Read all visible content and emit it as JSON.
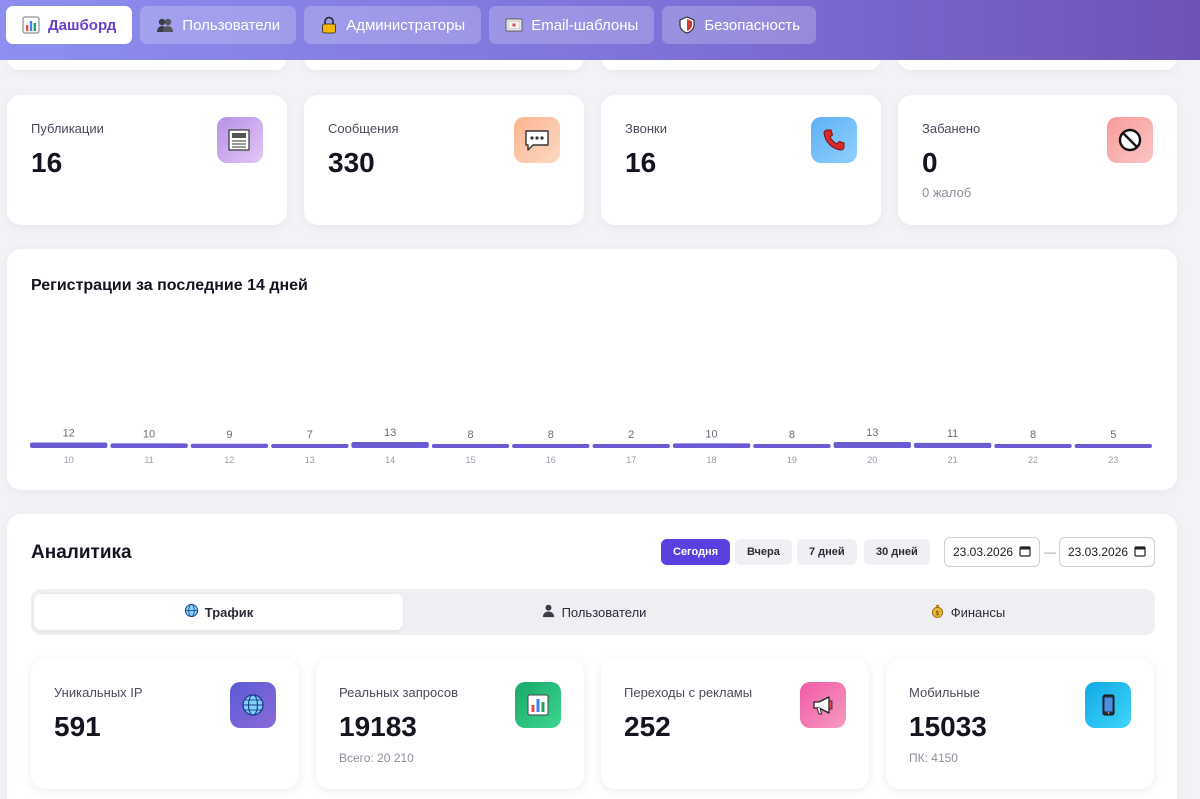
{
  "nav": {
    "tabs": [
      {
        "label": "Дашборд",
        "icon": "bar-chart-icon",
        "active": true
      },
      {
        "label": "Пользователи",
        "icon": "users-icon",
        "active": false
      },
      {
        "label": "Администраторы",
        "icon": "lock-icon",
        "active": false
      },
      {
        "label": "Email-шаблоны",
        "icon": "envelope-icon",
        "active": false
      },
      {
        "label": "Безопасность",
        "icon": "shield-icon",
        "active": false
      }
    ]
  },
  "stats": [
    {
      "label": "Публикации",
      "value": "16",
      "sub": "",
      "icon": "newspaper-icon",
      "color": "#c9a7ee"
    },
    {
      "label": "Сообщения",
      "value": "330",
      "sub": "",
      "icon": "speech-bubble-icon",
      "color": "#fbc2a3"
    },
    {
      "label": "Звонки",
      "value": "16",
      "sub": "",
      "icon": "phone-icon",
      "color": "#74b9f5"
    },
    {
      "label": "Забанено",
      "value": "0",
      "sub": "0 жалоб",
      "icon": "prohibited-icon",
      "color": "#f7a8a8"
    }
  ],
  "chart_data": {
    "type": "bar",
    "title": "Регистрации за последние 14 дней",
    "categories": [
      "10",
      "11",
      "12",
      "13",
      "14",
      "15",
      "16",
      "17",
      "18",
      "19",
      "20",
      "21",
      "22",
      "23"
    ],
    "values": [
      12,
      10,
      9,
      7,
      13,
      8,
      8,
      2,
      10,
      8,
      13,
      11,
      8,
      5
    ],
    "bar_color": "#6b5bd3"
  },
  "analytics": {
    "title": "Аналитика",
    "ranges": [
      {
        "label": "Сегодня",
        "active": true
      },
      {
        "label": "Вчера",
        "active": false
      },
      {
        "label": "7 дней",
        "active": false
      },
      {
        "label": "30 дней",
        "active": false
      }
    ],
    "date_from": "23.03.2026",
    "date_to": "23.03.2026",
    "date_separator": "—",
    "segments": [
      {
        "label": "Трафик",
        "icon": "globe-icon",
        "active": true
      },
      {
        "label": "Пользователи",
        "icon": "user-icon",
        "active": false
      },
      {
        "label": "Финансы",
        "icon": "money-bag-icon",
        "active": false
      }
    ],
    "metrics": [
      {
        "label": "Уникальных IP",
        "value": "591",
        "sub": "",
        "icon": "globe-icon",
        "color": "#6a5acd"
      },
      {
        "label": "Реальных запросов",
        "value": "19183",
        "sub": "Всего: 20 210",
        "icon": "chart-icon",
        "color": "#2ec27e"
      },
      {
        "label": "Переходы с рекламы",
        "value": "252",
        "sub": "",
        "icon": "megaphone-icon",
        "color": "#f06aa8"
      },
      {
        "label": "Мобильные",
        "value": "15033",
        "sub": "ПК: 4150",
        "icon": "mobile-phone-icon",
        "color": "#1fb4f0"
      }
    ]
  }
}
